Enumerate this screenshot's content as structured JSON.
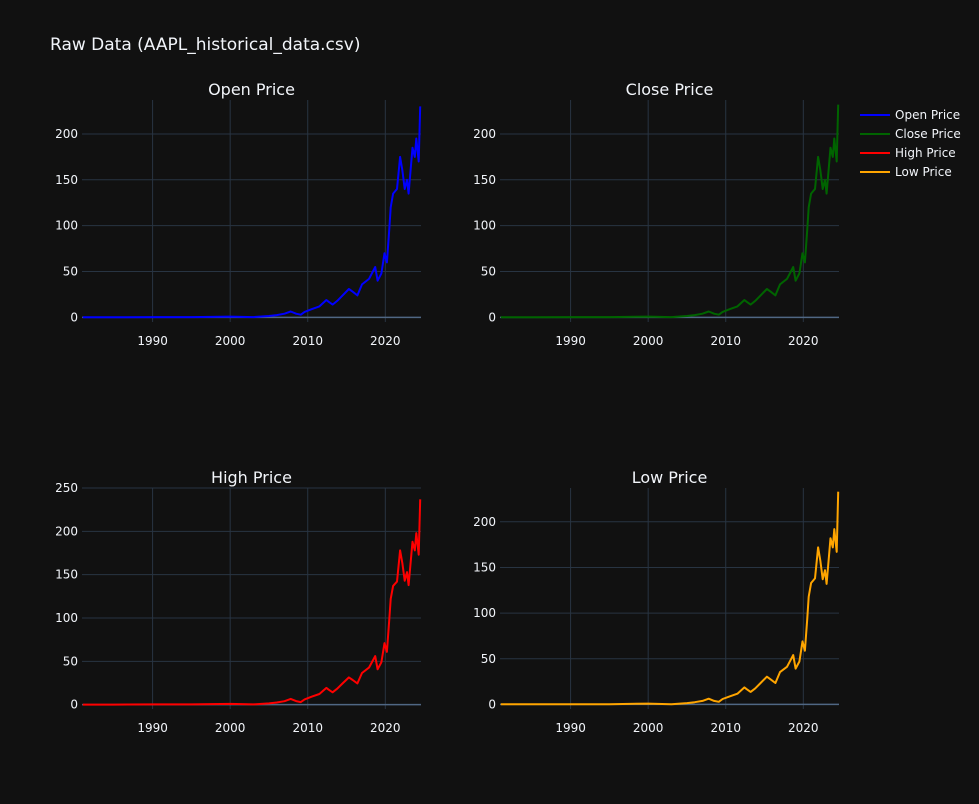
{
  "title": "Raw Data (AAPL_historical_data.csv)",
  "colors": {
    "background": "#111111",
    "grid": "#283442",
    "zeroline": "#506784",
    "text": "#f2f5fa",
    "open": "#0000ff",
    "close": "#006400",
    "high": "#ff0000",
    "low": "#ffa500"
  },
  "legend": {
    "placement": "top-right",
    "items": [
      {
        "label": "Open Price",
        "color": "#0000ff"
      },
      {
        "label": "Close Price",
        "color": "#006400"
      },
      {
        "label": "High Price",
        "color": "#ff0000"
      },
      {
        "label": "Low Price",
        "color": "#ffa500"
      }
    ]
  },
  "chart_data": [
    {
      "type": "line",
      "title": "Open Price",
      "series": [
        {
          "name": "Open Price",
          "color": "#0000ff"
        }
      ],
      "xlim": [
        1980.9,
        2024.6
      ],
      "ylim": [
        -5,
        237
      ],
      "xticks": [
        1990,
        2000,
        2010,
        2020
      ],
      "yticks": [
        0,
        50,
        100,
        150,
        200
      ],
      "grid": true,
      "x": [
        1981,
        1985,
        1990,
        1995,
        2000,
        2003,
        2005,
        2006,
        2007,
        2007.8,
        2008.5,
        2009.1,
        2009.6,
        2010.5,
        2011.5,
        2012.4,
        2012.7,
        2013.2,
        2013.8,
        2014.5,
        2015.3,
        2015.8,
        2016.4,
        2017,
        2017.9,
        2018.7,
        2019,
        2019.5,
        2019.9,
        2020.2,
        2020.5,
        2020.7,
        2021,
        2021.5,
        2021.9,
        2022.2,
        2022.5,
        2022.8,
        2023,
        2023.5,
        2023.8,
        2024,
        2024.3,
        2024.5
      ],
      "y": [
        0.1,
        0.1,
        0.3,
        0.3,
        0.9,
        0.3,
        1.5,
        2.5,
        4,
        6.5,
        4,
        3,
        6,
        9,
        12,
        19,
        17,
        14,
        18,
        24,
        31,
        28,
        24,
        36,
        42,
        55,
        40,
        48,
        70,
        60,
        95,
        120,
        135,
        140,
        175,
        160,
        140,
        150,
        135,
        185,
        175,
        195,
        170,
        230
      ]
    },
    {
      "type": "line",
      "title": "Close Price",
      "series": [
        {
          "name": "Close Price",
          "color": "#006400"
        }
      ],
      "xlim": [
        1980.9,
        2024.6
      ],
      "ylim": [
        -5,
        237
      ],
      "xticks": [
        1990,
        2000,
        2010,
        2020
      ],
      "yticks": [
        0,
        50,
        100,
        150,
        200
      ],
      "grid": true,
      "x": [
        1981,
        1985,
        1990,
        1995,
        2000,
        2003,
        2005,
        2006,
        2007,
        2007.8,
        2008.5,
        2009.1,
        2009.6,
        2010.5,
        2011.5,
        2012.4,
        2012.7,
        2013.2,
        2013.8,
        2014.5,
        2015.3,
        2015.8,
        2016.4,
        2017,
        2017.9,
        2018.7,
        2019,
        2019.5,
        2019.9,
        2020.2,
        2020.5,
        2020.7,
        2021,
        2021.5,
        2021.9,
        2022.2,
        2022.5,
        2022.8,
        2023,
        2023.5,
        2023.8,
        2024,
        2024.3,
        2024.5
      ],
      "y": [
        0.1,
        0.1,
        0.3,
        0.3,
        0.9,
        0.3,
        1.5,
        2.5,
        4,
        6.5,
        4,
        3,
        6,
        9,
        12,
        19,
        17,
        14,
        18,
        24,
        31,
        28,
        24,
        36,
        42,
        55,
        40,
        48,
        70,
        60,
        95,
        120,
        135,
        140,
        175,
        160,
        140,
        150,
        135,
        185,
        175,
        195,
        170,
        232
      ]
    },
    {
      "type": "line",
      "title": "High Price",
      "series": [
        {
          "name": "High Price",
          "color": "#ff0000"
        }
      ],
      "xlim": [
        1980.9,
        2024.6
      ],
      "ylim": [
        -5,
        250
      ],
      "xticks": [
        1990,
        2000,
        2010,
        2020
      ],
      "yticks": [
        0,
        50,
        100,
        150,
        200,
        250
      ],
      "grid": true,
      "x": [
        1981,
        1985,
        1990,
        1995,
        2000,
        2003,
        2005,
        2006,
        2007,
        2007.8,
        2008.5,
        2009.1,
        2009.6,
        2010.5,
        2011.5,
        2012.4,
        2012.7,
        2013.2,
        2013.8,
        2014.5,
        2015.3,
        2015.8,
        2016.4,
        2017,
        2017.9,
        2018.7,
        2019,
        2019.5,
        2019.9,
        2020.2,
        2020.5,
        2020.7,
        2021,
        2021.5,
        2021.9,
        2022.2,
        2022.5,
        2022.8,
        2023,
        2023.5,
        2023.8,
        2024,
        2024.3,
        2024.5
      ],
      "y": [
        0.1,
        0.1,
        0.3,
        0.3,
        0.9,
        0.3,
        1.5,
        2.5,
        4,
        6.6,
        4.1,
        3,
        6.1,
        9.2,
        12.3,
        19.4,
        17.3,
        14.3,
        18.4,
        24.5,
        31.5,
        28.5,
        24.5,
        36.5,
        42.8,
        56,
        40.8,
        49,
        71,
        61,
        97,
        122,
        137,
        142,
        178,
        163,
        143,
        153,
        138,
        188,
        178,
        198,
        173,
        237
      ]
    },
    {
      "type": "line",
      "title": "Low Price",
      "series": [
        {
          "name": "Low Price",
          "color": "#ffa500"
        }
      ],
      "xlim": [
        1980.9,
        2024.6
      ],
      "ylim": [
        -5,
        237
      ],
      "xticks": [
        1990,
        2000,
        2010,
        2020
      ],
      "yticks": [
        0,
        50,
        100,
        150,
        200
      ],
      "grid": true,
      "x": [
        1981,
        1985,
        1990,
        1995,
        2000,
        2003,
        2005,
        2006,
        2007,
        2007.8,
        2008.5,
        2009.1,
        2009.6,
        2010.5,
        2011.5,
        2012.4,
        2012.7,
        2013.2,
        2013.8,
        2014.5,
        2015.3,
        2015.8,
        2016.4,
        2017,
        2017.9,
        2018.7,
        2019,
        2019.5,
        2019.9,
        2020.2,
        2020.5,
        2020.7,
        2021,
        2021.5,
        2021.9,
        2022.2,
        2022.5,
        2022.8,
        2023,
        2023.5,
        2023.8,
        2024,
        2024.3,
        2024.5
      ],
      "y": [
        0.1,
        0.1,
        0.3,
        0.3,
        0.9,
        0.3,
        1.5,
        2.4,
        3.9,
        6.3,
        3.9,
        2.9,
        5.9,
        8.8,
        11.7,
        18.6,
        16.7,
        13.7,
        17.6,
        23.5,
        30.4,
        27.4,
        23.5,
        35.4,
        41.2,
        54,
        39.2,
        47,
        69,
        58.8,
        93,
        118,
        133,
        138,
        172,
        157,
        137,
        147,
        132,
        182,
        172,
        192,
        167,
        233
      ]
    }
  ]
}
